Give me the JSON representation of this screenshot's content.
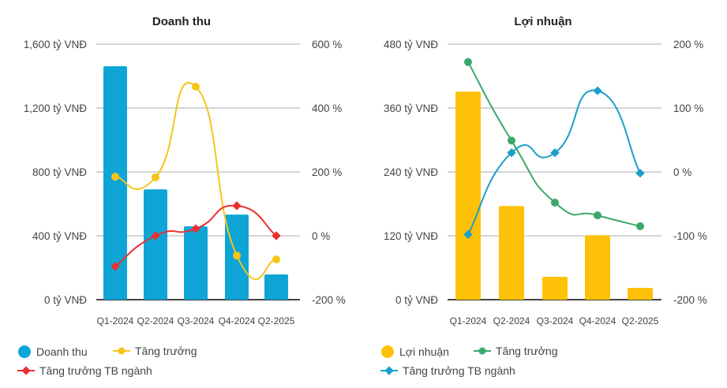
{
  "chart_data": [
    {
      "type": "bar+line",
      "title": "Doanh thu",
      "categories": [
        "Q1-2024",
        "Q2-2024",
        "Q3-2024",
        "Q4-2024",
        "Q2-2025"
      ],
      "left_axis": {
        "ylim": [
          0,
          1600
        ],
        "ticks": [
          0,
          400,
          800,
          1200,
          1600
        ],
        "tick_labels": [
          "0 tỷ VNĐ",
          "400 tỷ VNĐ",
          "800 tỷ VNĐ",
          "1,200 tỷ VNĐ",
          "1,600 tỷ VNĐ"
        ]
      },
      "right_axis": {
        "ylim": [
          -200,
          600
        ],
        "ticks": [
          -200,
          0,
          200,
          400,
          600
        ],
        "tick_labels": [
          "-200 %",
          "0 %",
          "200 %",
          "400 %",
          "600 %"
        ]
      },
      "bars": {
        "name": "Doanh thu",
        "color": "#0ea5d6",
        "values": [
          1462,
          691,
          459,
          533,
          158
        ]
      },
      "series": [
        {
          "name": "Tăng trưởng",
          "color": "#f5c518",
          "marker": "circle",
          "values": [
            185,
            183,
            467,
            -62,
            -74
          ]
        },
        {
          "name": "Tăng trưởng TB ngành",
          "color": "#e8312f",
          "marker": "diamond",
          "values": [
            -96,
            0,
            22,
            94,
            0
          ]
        }
      ],
      "legend_position": "bottom"
    },
    {
      "type": "bar+line",
      "title": "Lợi nhuận",
      "categories": [
        "Q1-2024",
        "Q2-2024",
        "Q3-2024",
        "Q4-2024",
        "Q2-2025"
      ],
      "left_axis": {
        "ylim": [
          0,
          480
        ],
        "ticks": [
          0,
          120,
          240,
          360,
          480
        ],
        "tick_labels": [
          "0 tỷ VNĐ",
          "120 tỷ VNĐ",
          "240 tỷ VNĐ",
          "360 tỷ VNĐ",
          "480 tỷ VNĐ"
        ]
      },
      "right_axis": {
        "ylim": [
          -200,
          200
        ],
        "ticks": [
          -200,
          -100,
          0,
          100,
          200
        ],
        "tick_labels": [
          "-200 %",
          "-100 %",
          "0 %",
          "100 %",
          "200 %"
        ]
      },
      "bars": {
        "name": "Lợi nhuận",
        "color": "#ffc107",
        "values": [
          391,
          176,
          43,
          121,
          22
        ]
      },
      "series": [
        {
          "name": "Tăng trưởng",
          "color": "#3aa86b",
          "marker": "circle",
          "values": [
            172,
            49,
            -48,
            -68,
            -85
          ]
        },
        {
          "name": "Tăng trưởng TB ngành",
          "color": "#1a9fc9",
          "marker": "diamond",
          "values": [
            -98,
            30,
            30,
            127,
            -2
          ]
        }
      ],
      "legend_position": "bottom"
    }
  ]
}
